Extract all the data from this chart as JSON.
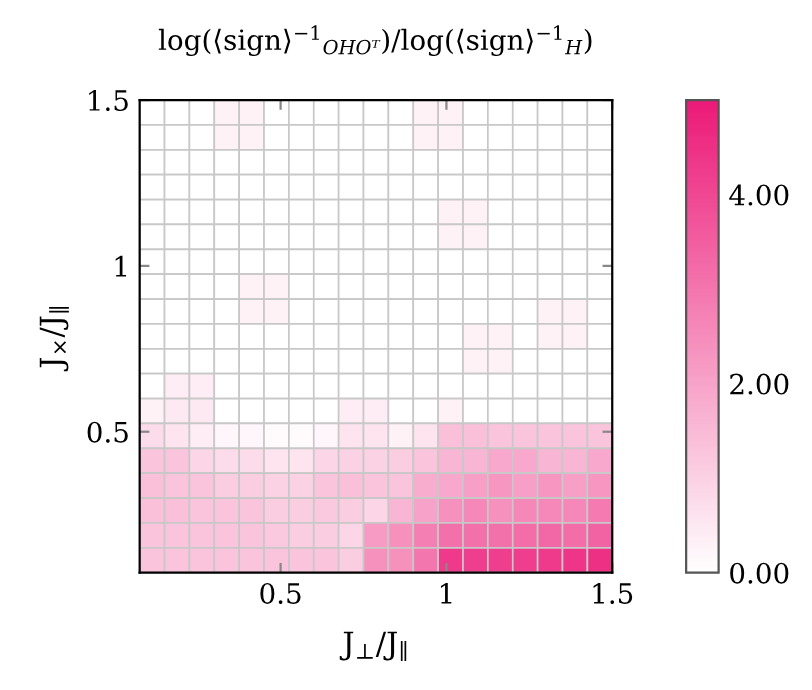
{
  "chart_data": {
    "type": "heatmap",
    "title": "log(⟨sign⟩$^{−1}$$_{OHOᵀ}$)/log(⟨sign⟩$^{−1}$$_{H}$)",
    "xlabel": "J$_{⊥}$/J$_{∥}$",
    "ylabel": "J$_{×}$/J$_{∥}$",
    "x": [
      0.1125,
      0.1875,
      0.2625,
      0.3375,
      0.4125,
      0.4875,
      0.5625,
      0.6375,
      0.7125,
      0.7875,
      0.8625,
      0.9375,
      1.0125,
      1.0875,
      1.1625,
      1.2375,
      1.3125,
      1.3875,
      1.4625
    ],
    "y": [
      1.4625,
      1.3875,
      1.3125,
      1.2375,
      1.1625,
      1.0875,
      1.0125,
      0.9375,
      0.8625,
      0.7875,
      0.7125,
      0.6375,
      0.5625,
      0.4875,
      0.4125,
      0.3375,
      0.2625,
      0.1875,
      0.1125
    ],
    "xlim": [
      0.075,
      1.5
    ],
    "ylim": [
      0.075,
      1.5
    ],
    "xticks": [
      0.5,
      1,
      1.5
    ],
    "yticks": [
      0.5,
      1,
      1.5
    ],
    "clim": [
      0,
      5
    ],
    "cticks": [
      {
        "value": 0,
        "label": "0.00"
      },
      {
        "value": 2,
        "label": "2.00"
      },
      {
        "value": 4,
        "label": "4.00"
      }
    ],
    "cells": [
      [
        0,
        0,
        0,
        0.3,
        0.3,
        0,
        0,
        0,
        0,
        0,
        0,
        0.3,
        0.3,
        0,
        0,
        0,
        0,
        0,
        0
      ],
      [
        0,
        0,
        0,
        0.3,
        0.3,
        0,
        0,
        0,
        0,
        0,
        0,
        0.3,
        0.3,
        0,
        0,
        0,
        0,
        0,
        0
      ],
      [
        0,
        0,
        0,
        0,
        0,
        0,
        0,
        0,
        0,
        0,
        0,
        0,
        0,
        0,
        0,
        0,
        0,
        0,
        0
      ],
      [
        0,
        0,
        0,
        0,
        0,
        0,
        0,
        0,
        0,
        0,
        0,
        0,
        0,
        0,
        0,
        0,
        0,
        0,
        0
      ],
      [
        0,
        0,
        0,
        0,
        0,
        0,
        0,
        0,
        0,
        0,
        0,
        0,
        0.3,
        0.3,
        0,
        0,
        0,
        0,
        0
      ],
      [
        0,
        0,
        0,
        0,
        0,
        0,
        0,
        0,
        0,
        0,
        0,
        0,
        0.3,
        0.3,
        0,
        0,
        0,
        0,
        0
      ],
      [
        0,
        0,
        0,
        0,
        0,
        0,
        0,
        0,
        0,
        0,
        0,
        0,
        0,
        0,
        0,
        0,
        0,
        0,
        0
      ],
      [
        0,
        0,
        0,
        0,
        0.3,
        0.3,
        0,
        0,
        0,
        0,
        0,
        0,
        0,
        0,
        0,
        0,
        0,
        0,
        0
      ],
      [
        0,
        0,
        0,
        0,
        0.3,
        0.3,
        0,
        0,
        0,
        0,
        0,
        0,
        0,
        0,
        0,
        0,
        0.3,
        0.3,
        0
      ],
      [
        0,
        0,
        0,
        0,
        0,
        0,
        0,
        0,
        0,
        0,
        0,
        0,
        0,
        0.3,
        0.3,
        0,
        0.3,
        0.3,
        0
      ],
      [
        0,
        0,
        0,
        0,
        0,
        0,
        0,
        0,
        0,
        0,
        0,
        0,
        0,
        0.3,
        0.3,
        0,
        0,
        0,
        0
      ],
      [
        0,
        0.4,
        0.4,
        0,
        0,
        0,
        0,
        0,
        0,
        0,
        0,
        0,
        0,
        0,
        0,
        0,
        0,
        0,
        0
      ],
      [
        0.3,
        0.5,
        0.5,
        0,
        0,
        0,
        0,
        0,
        0.4,
        0.4,
        0,
        0,
        0.3,
        0,
        0,
        0,
        0,
        0,
        0
      ],
      [
        0.8,
        0.6,
        0.4,
        0.2,
        0.2,
        0.1,
        0.1,
        0.2,
        0.6,
        0.6,
        0.3,
        0.6,
        1.4,
        1.4,
        1.3,
        1.3,
        1.3,
        1.3,
        1.3
      ],
      [
        1.3,
        1.3,
        0.9,
        0.8,
        0.8,
        0.6,
        0.6,
        0.9,
        1.0,
        1.0,
        1.1,
        1.3,
        1.6,
        1.6,
        1.9,
        1.9,
        1.6,
        1.6,
        1.9
      ],
      [
        1.4,
        1.3,
        1.3,
        1.1,
        1.1,
        1.0,
        1.0,
        1.3,
        1.4,
        1.3,
        1.3,
        1.8,
        1.9,
        2.1,
        2.3,
        2.1,
        2.3,
        2.1,
        2.3
      ],
      [
        1.4,
        1.4,
        1.3,
        1.3,
        1.3,
        1.1,
        1.1,
        1.2,
        1.1,
        0.9,
        1.6,
        2.0,
        2.4,
        2.6,
        2.4,
        2.6,
        2.6,
        2.6,
        2.9
      ],
      [
        1.3,
        1.3,
        1.3,
        1.3,
        1.3,
        1.2,
        1.1,
        1.1,
        0.9,
        2.2,
        2.4,
        2.8,
        3.1,
        3.1,
        3.1,
        3.2,
        3.3,
        3.2,
        3.4
      ],
      [
        1.3,
        1.3,
        1.3,
        1.3,
        1.3,
        1.3,
        1.3,
        1.3,
        1.1,
        2.4,
        2.4,
        3.0,
        4.3,
        4.2,
        4.2,
        4.2,
        4.3,
        4.4,
        4.5
      ]
    ]
  }
}
